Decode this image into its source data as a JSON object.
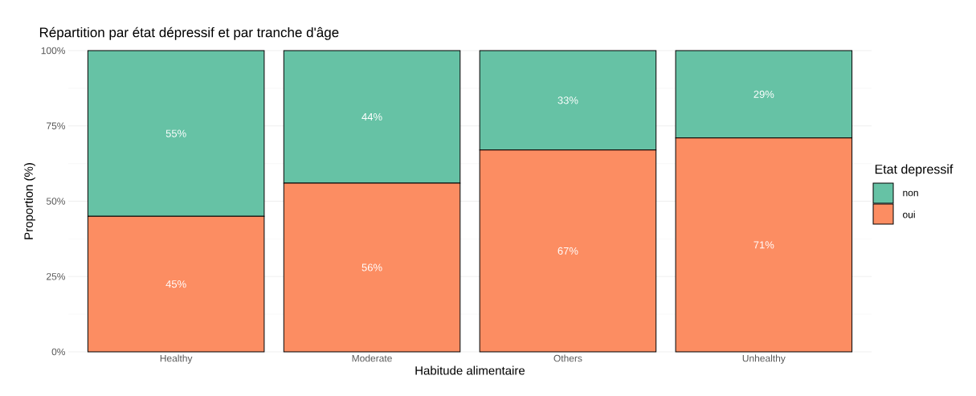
{
  "chart_data": {
    "type": "bar",
    "stacked": true,
    "title": "Répartition par état dépressif et par tranche d'âge",
    "xlabel": "Habitude alimentaire",
    "ylabel": "Proportion (%)",
    "legend_title": "Etat depressif",
    "categories": [
      "Healthy",
      "Moderate",
      "Others",
      "Unhealthy"
    ],
    "series": [
      {
        "name": "oui",
        "color": "#fc8d62",
        "values": [
          45,
          56,
          67,
          71
        ],
        "value_labels": [
          "45%",
          "56%",
          "67%",
          "71%"
        ]
      },
      {
        "name": "non",
        "color": "#66c2a5",
        "values": [
          55,
          44,
          33,
          29
        ],
        "value_labels": [
          "55%",
          "44%",
          "33%",
          "29%"
        ]
      }
    ],
    "ylim": [
      0,
      100
    ],
    "yticks": [
      {
        "value": 0,
        "label": "0%"
      },
      {
        "value": 25,
        "label": "25%"
      },
      {
        "value": 50,
        "label": "50%"
      },
      {
        "value": 75,
        "label": "75%"
      },
      {
        "value": 100,
        "label": "100%"
      }
    ],
    "grid": true,
    "legend": "right"
  }
}
